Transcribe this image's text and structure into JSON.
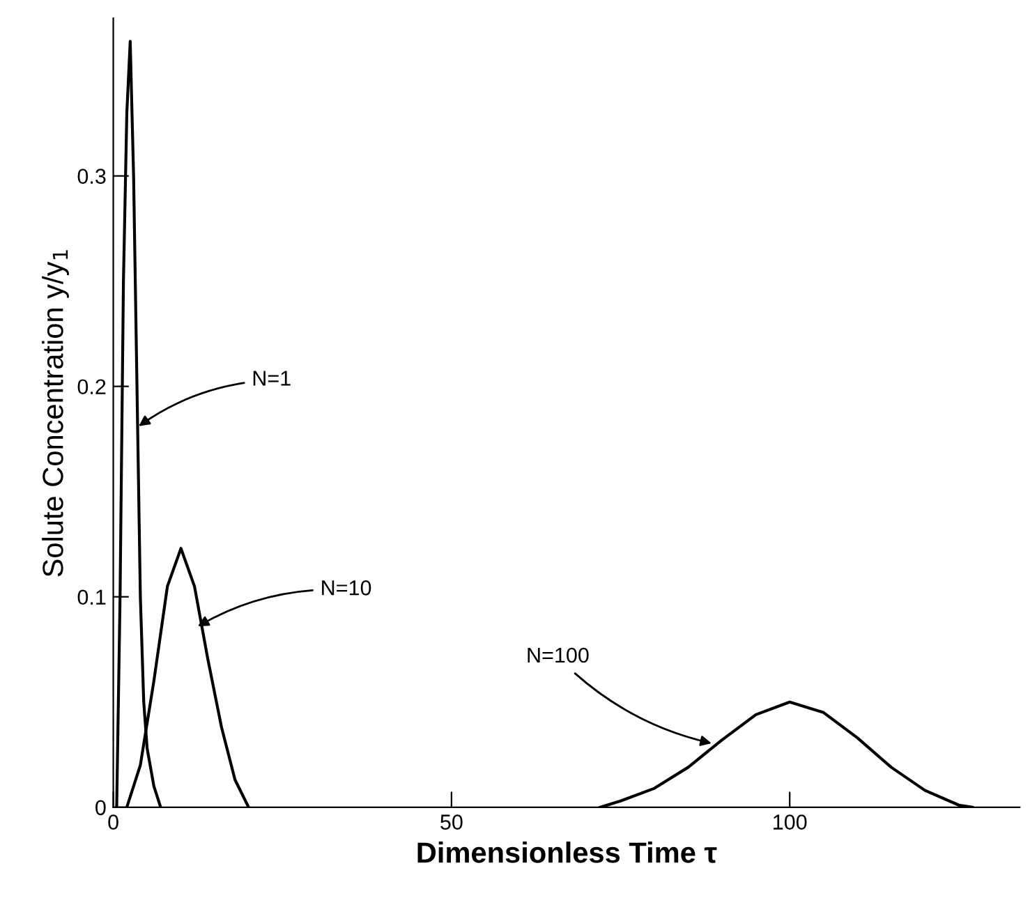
{
  "chart_data": {
    "type": "line",
    "xlabel": "Dimensionless Time τ",
    "ylabel": "Solute Concentration y/y$_{1}$",
    "xlim": [
      0,
      134
    ],
    "ylim": [
      0,
      0.375
    ],
    "xticks": [
      0,
      50,
      100
    ],
    "yticks": [
      0,
      0.1,
      0.2,
      0.3
    ],
    "grid": false,
    "legend": false,
    "marker": "none",
    "line_style": "solid",
    "series": [
      {
        "color": "#000000",
        "x": [
          0.5,
          1,
          1.5,
          2,
          2.5,
          3,
          3.5,
          4,
          4.5,
          5,
          6,
          7
        ],
        "values": [
          0,
          0.1,
          0.25,
          0.33,
          0.364,
          0.3,
          0.2,
          0.1,
          0.05,
          0.028,
          0.01,
          0
        ]
      },
      {
        "color": "#000000",
        "x": [
          2,
          4,
          6,
          8,
          10,
          12,
          14,
          16,
          18,
          20
        ],
        "values": [
          0,
          0.02,
          0.06,
          0.105,
          0.123,
          0.105,
          0.07,
          0.038,
          0.013,
          0
        ]
      },
      {
        "color": "#000000",
        "x": [
          72,
          75,
          80,
          85,
          90,
          95,
          100,
          105,
          110,
          115,
          120,
          125,
          127
        ],
        "values": [
          0,
          0.003,
          0.009,
          0.019,
          0.032,
          0.044,
          0.05,
          0.045,
          0.033,
          0.019,
          0.008,
          0.001,
          0
        ]
      }
    ],
    "annotations": [
      {
        "text": "N=1",
        "x": 3.3,
        "y": 0.18
      },
      {
        "text": "N=10",
        "x": 12,
        "y": 0.085
      },
      {
        "text": "N=100",
        "x": 89,
        "y": 0.03
      }
    ]
  }
}
